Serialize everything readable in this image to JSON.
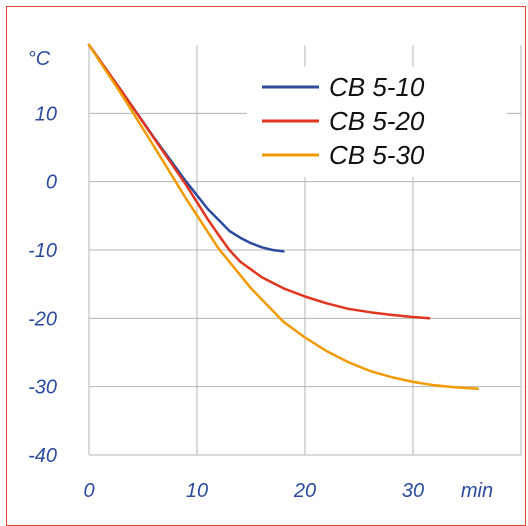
{
  "chart_data": {
    "type": "line",
    "ylabel": "°C",
    "xlabel": "min",
    "xlim": [
      0,
      40
    ],
    "ylim": [
      -40,
      20
    ],
    "xticks": [
      0,
      10,
      20,
      30
    ],
    "yticks": [
      -40,
      -30,
      -20,
      -10,
      0,
      10
    ],
    "grid": true,
    "legend_position": "top-right",
    "series": [
      {
        "name": "CB 5-10",
        "color": "#2c4a9e",
        "x": [
          0,
          3,
          6,
          9,
          10,
          11,
          12,
          13,
          14,
          15,
          16,
          17,
          18
        ],
        "y": [
          20,
          13.3,
          6.5,
          0,
          -2,
          -4,
          -5.6,
          -7.2,
          -8.2,
          -9,
          -9.6,
          -10,
          -10.2
        ]
      },
      {
        "name": "CB 5-20",
        "color": "#e0351f",
        "x": [
          0,
          3,
          6,
          9,
          10,
          11,
          12,
          13,
          14,
          16,
          18,
          20,
          22,
          24,
          26,
          28,
          30,
          31.5
        ],
        "y": [
          20,
          13.3,
          6.4,
          -0.5,
          -3,
          -5.5,
          -7.8,
          -10,
          -11.7,
          -14,
          -15.6,
          -16.8,
          -17.8,
          -18.6,
          -19.1,
          -19.5,
          -19.8,
          -20
        ]
      },
      {
        "name": "CB 5-30",
        "color": "#f29a00",
        "x": [
          0,
          3,
          6,
          9,
          12,
          15,
          18,
          20,
          22,
          24,
          26,
          28,
          30,
          32,
          34,
          36
        ],
        "y": [
          20,
          12.8,
          5.2,
          -2.5,
          -9.8,
          -15.6,
          -20.5,
          -22.8,
          -24.8,
          -26.4,
          -27.7,
          -28.6,
          -29.3,
          -29.8,
          -30.1,
          -30.3
        ]
      }
    ]
  }
}
